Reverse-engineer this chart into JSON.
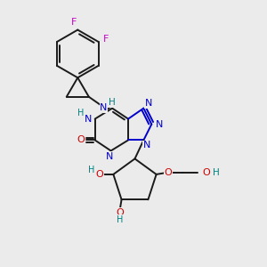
{
  "bg_color": "#ebebeb",
  "bond_color": "#1a1a1a",
  "blue_color": "#0000cc",
  "red_color": "#cc0000",
  "magenta_color": "#cc00cc",
  "teal_color": "#008080",
  "figsize": [
    3.0,
    3.0
  ],
  "dpi": 100,
  "xlim": [
    0,
    10
  ],
  "ylim": [
    0,
    10
  ]
}
